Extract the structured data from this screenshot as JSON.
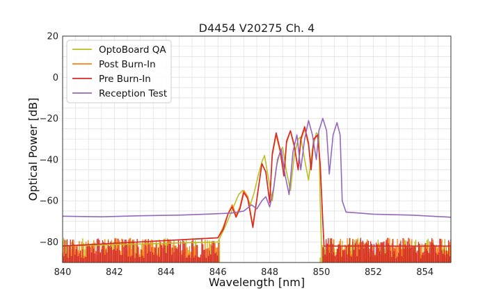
{
  "chart_data": {
    "type": "line",
    "title": "D4454 V20275 Ch. 4",
    "xlabel": "Wavelength [nm]",
    "ylabel": "Optical Power [dB]",
    "xlim": [
      840,
      855
    ],
    "ylim": [
      -90,
      20
    ],
    "x_ticks": [
      "840",
      "842",
      "844",
      "846",
      "848",
      "850",
      "852",
      "854"
    ],
    "y_ticks": [
      "20",
      "0",
      "−20",
      "−40",
      "−60",
      "−80"
    ],
    "grid": true,
    "legend_position": "upper-left",
    "noise_floor": -90,
    "series": [
      {
        "name": "OptoBoard QA",
        "color": "#bcbd22",
        "points": [
          [
            840.0,
            -82
          ],
          [
            846.0,
            -80
          ],
          [
            846.3,
            -72
          ],
          [
            846.6,
            -63
          ],
          [
            846.8,
            -57
          ],
          [
            846.95,
            -55
          ],
          [
            847.1,
            -57
          ],
          [
            847.25,
            -62
          ],
          [
            847.4,
            -56
          ],
          [
            847.55,
            -48
          ],
          [
            847.7,
            -41
          ],
          [
            847.8,
            -38
          ],
          [
            847.95,
            -49
          ],
          [
            848.1,
            -60
          ],
          [
            848.25,
            -44
          ],
          [
            848.4,
            -36
          ],
          [
            848.5,
            -34
          ],
          [
            848.65,
            -46
          ],
          [
            848.8,
            -55
          ],
          [
            848.95,
            -38
          ],
          [
            849.1,
            -30
          ],
          [
            849.2,
            -29
          ],
          [
            849.35,
            -40
          ],
          [
            849.5,
            -50
          ],
          [
            849.65,
            -35
          ],
          [
            849.8,
            -27
          ],
          [
            849.9,
            -28
          ],
          [
            849.95,
            -60
          ],
          [
            850.0,
            -82
          ],
          [
            855.0,
            -82
          ]
        ]
      },
      {
        "name": "Post Burn-In",
        "color": "#ff7f0e",
        "points": [
          [
            840.0,
            -82
          ],
          [
            846.0,
            -78
          ],
          [
            846.2,
            -73
          ],
          [
            846.4,
            -66
          ],
          [
            846.55,
            -62
          ],
          [
            846.7,
            -67
          ],
          [
            846.85,
            -63
          ],
          [
            847.0,
            -55
          ],
          [
            847.15,
            -58
          ],
          [
            847.35,
            -72
          ],
          [
            847.55,
            -55
          ],
          [
            847.7,
            -42
          ],
          [
            847.85,
            -46
          ],
          [
            848.0,
            -60
          ],
          [
            848.1,
            -38
          ],
          [
            848.25,
            -28
          ],
          [
            848.4,
            -36
          ],
          [
            848.55,
            -48
          ],
          [
            848.65,
            -32
          ],
          [
            848.8,
            -26
          ],
          [
            848.95,
            -34
          ],
          [
            849.1,
            -45
          ],
          [
            849.2,
            -31
          ],
          [
            849.35,
            -25
          ],
          [
            849.5,
            -33
          ],
          [
            849.6,
            -45
          ],
          [
            849.7,
            -31
          ],
          [
            849.85,
            -28
          ],
          [
            849.95,
            -42
          ],
          [
            850.05,
            -70
          ],
          [
            850.1,
            -82
          ],
          [
            855.0,
            -82
          ]
        ]
      },
      {
        "name": "Pre Burn-In",
        "color": "#d62728",
        "points": [
          [
            840.0,
            -82
          ],
          [
            846.0,
            -78
          ],
          [
            846.2,
            -74
          ],
          [
            846.4,
            -66
          ],
          [
            846.55,
            -63
          ],
          [
            846.7,
            -68
          ],
          [
            846.85,
            -64
          ],
          [
            847.0,
            -56
          ],
          [
            847.15,
            -59
          ],
          [
            847.35,
            -73
          ],
          [
            847.55,
            -55
          ],
          [
            847.7,
            -42
          ],
          [
            847.85,
            -46
          ],
          [
            848.0,
            -61
          ],
          [
            848.1,
            -37
          ],
          [
            848.25,
            -27
          ],
          [
            848.4,
            -35
          ],
          [
            848.55,
            -48
          ],
          [
            848.65,
            -31
          ],
          [
            848.8,
            -26
          ],
          [
            848.95,
            -33
          ],
          [
            849.1,
            -45
          ],
          [
            849.2,
            -30
          ],
          [
            849.35,
            -24
          ],
          [
            849.5,
            -32
          ],
          [
            849.6,
            -45
          ],
          [
            849.7,
            -30
          ],
          [
            849.85,
            -28
          ],
          [
            849.95,
            -42
          ],
          [
            850.05,
            -70
          ],
          [
            850.1,
            -82
          ],
          [
            855.0,
            -82
          ]
        ]
      },
      {
        "name": "Reception Test",
        "color": "#9467bd",
        "points": [
          [
            840.0,
            -67.5
          ],
          [
            841.5,
            -67.8
          ],
          [
            843.0,
            -67.3
          ],
          [
            844.5,
            -67.0
          ],
          [
            845.5,
            -66.5
          ],
          [
            846.5,
            -66.0
          ],
          [
            847.0,
            -65.0
          ],
          [
            847.3,
            -62.0
          ],
          [
            847.5,
            -64.0
          ],
          [
            847.7,
            -60.0
          ],
          [
            847.85,
            -58.0
          ],
          [
            848.0,
            -63.0
          ],
          [
            848.15,
            -54.0
          ],
          [
            848.3,
            -40.0
          ],
          [
            848.45,
            -35.0
          ],
          [
            848.6,
            -48.0
          ],
          [
            848.75,
            -57.0
          ],
          [
            848.9,
            -36.0
          ],
          [
            849.05,
            -28.0
          ],
          [
            849.2,
            -45.0
          ],
          [
            849.35,
            -30.0
          ],
          [
            849.5,
            -21.0
          ],
          [
            849.65,
            -28.0
          ],
          [
            849.8,
            -40.0
          ],
          [
            849.9,
            -26.0
          ],
          [
            850.05,
            -20.0
          ],
          [
            850.2,
            -26.0
          ],
          [
            850.3,
            -47.0
          ],
          [
            850.45,
            -28.0
          ],
          [
            850.6,
            -22.0
          ],
          [
            850.72,
            -28.0
          ],
          [
            850.8,
            -60.0
          ],
          [
            850.95,
            -65.5
          ],
          [
            852.0,
            -66.5
          ],
          [
            853.5,
            -67.0
          ],
          [
            855.0,
            -68.0
          ]
        ]
      }
    ]
  }
}
